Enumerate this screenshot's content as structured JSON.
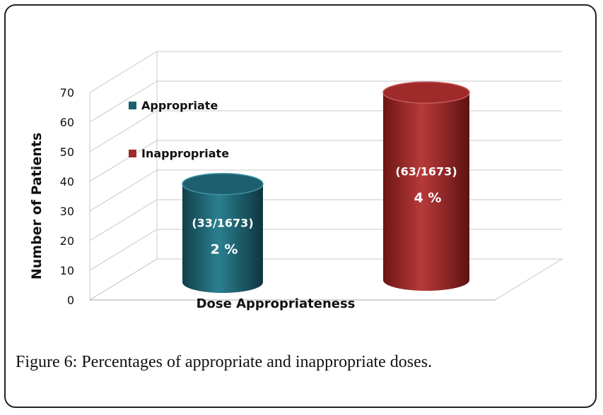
{
  "chart_data": {
    "type": "bar",
    "xlabel": "Dose Appropriateness",
    "ylabel": "Number of Patients",
    "ylim": [
      0,
      70
    ],
    "yticks": [
      0,
      10,
      20,
      30,
      40,
      50,
      60,
      70
    ],
    "grid": true,
    "legend_position": "top-left",
    "series": [
      {
        "name": "Appropriate",
        "value": 33,
        "label_count": "(33/1673)",
        "label_percent": "2 %",
        "color": "#1d5f6e"
      },
      {
        "name": "Inappropriate",
        "value": 63,
        "label_count": "(63/1673)",
        "label_percent": "4 %",
        "color": "#9e2a2a"
      }
    ]
  },
  "caption": {
    "label": "Figure 6:",
    "text": "Percentages of appropriate and inappropriate doses."
  }
}
